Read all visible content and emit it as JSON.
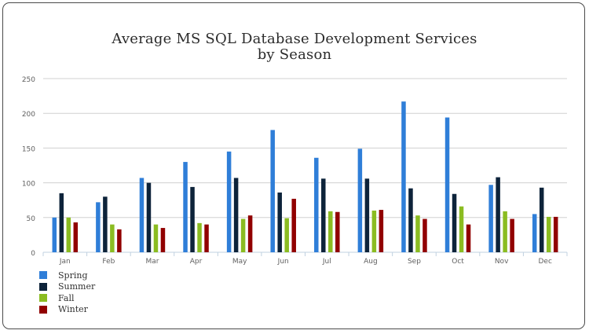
{
  "chart_data": {
    "type": "bar",
    "title_line1": "Average MS SQL Database Development Services",
    "title_line2": "by Season",
    "categories": [
      "Jan",
      "Feb",
      "Mar",
      "Apr",
      "May",
      "Jun",
      "Jul",
      "Aug",
      "Sep",
      "Oct",
      "Nov",
      "Dec"
    ],
    "series": [
      {
        "name": "Spring",
        "color": "#2f7ed8",
        "values": [
          50,
          72,
          107,
          130,
          145,
          176,
          136,
          149,
          217,
          194,
          97,
          55
        ]
      },
      {
        "name": "Summer",
        "color": "#0d233a",
        "values": [
          85,
          80,
          100,
          94,
          107,
          86,
          106,
          106,
          92,
          84,
          108,
          93
        ]
      },
      {
        "name": "Fall",
        "color": "#8bbc21",
        "values": [
          50,
          40,
          40,
          42,
          48,
          49,
          59,
          60,
          53,
          66,
          59,
          51
        ]
      },
      {
        "name": "Winter",
        "color": "#910000",
        "values": [
          43,
          33,
          35,
          40,
          53,
          77,
          58,
          61,
          48,
          40,
          48,
          51
        ]
      }
    ],
    "xlabel": "",
    "ylabel": "",
    "ylim": [
      0,
      250
    ],
    "yticks": [
      0,
      50,
      100,
      150,
      200,
      250
    ],
    "grid": true,
    "legend_position": "bottom-left"
  }
}
